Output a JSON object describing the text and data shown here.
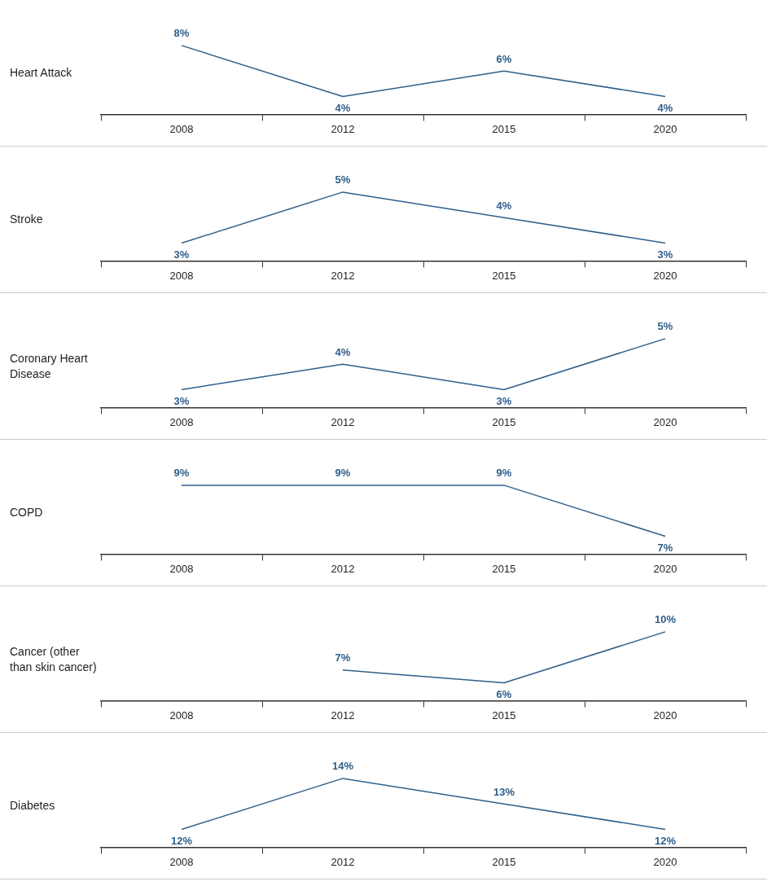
{
  "chart_data": [
    {
      "type": "line",
      "title": "Heart Attack",
      "categories": [
        "2008",
        "2012",
        "2015",
        "2020"
      ],
      "values": [
        8,
        4,
        6,
        4
      ],
      "value_labels": [
        "8%",
        "4%",
        "6%",
        "4%"
      ],
      "color": "#2f5f8a",
      "marker": "none"
    },
    {
      "type": "line",
      "title": "Stroke",
      "categories": [
        "2008",
        "2012",
        "2015",
        "2020"
      ],
      "values": [
        3,
        5,
        4,
        3
      ],
      "value_labels": [
        "3%",
        "5%",
        "4%",
        "3%"
      ],
      "color": "#2f5f8a",
      "marker": "none"
    },
    {
      "type": "line",
      "title": "Coronary Heart Disease",
      "categories": [
        "2008",
        "2012",
        "2015",
        "2020"
      ],
      "values": [
        3,
        4,
        3,
        5
      ],
      "value_labels": [
        "3%",
        "4%",
        "3%",
        "5%"
      ],
      "color": "#2f5f8a",
      "marker": "none"
    },
    {
      "type": "line",
      "title": "COPD",
      "categories": [
        "2008",
        "2012",
        "2015",
        "2020"
      ],
      "values": [
        9,
        9,
        9,
        7
      ],
      "value_labels": [
        "9%",
        "9%",
        "9%",
        "7%"
      ],
      "color": "#2f5f8a",
      "marker": "none"
    },
    {
      "type": "line",
      "title": "Cancer (other than skin cancer)",
      "categories": [
        "2008",
        "2012",
        "2015",
        "2020"
      ],
      "values": [
        null,
        7,
        6,
        10
      ],
      "value_labels": [
        null,
        "7%",
        "6%",
        "10%"
      ],
      "color": "#2f5f8a",
      "marker": "none"
    },
    {
      "type": "line",
      "title": "Diabetes",
      "categories": [
        "2008",
        "2012",
        "2015",
        "2020"
      ],
      "values": [
        12,
        14,
        13,
        12
      ],
      "value_labels": [
        "12%",
        "14%",
        "13%",
        "12%"
      ],
      "color": "#2f5f8a",
      "marker": "none"
    }
  ]
}
